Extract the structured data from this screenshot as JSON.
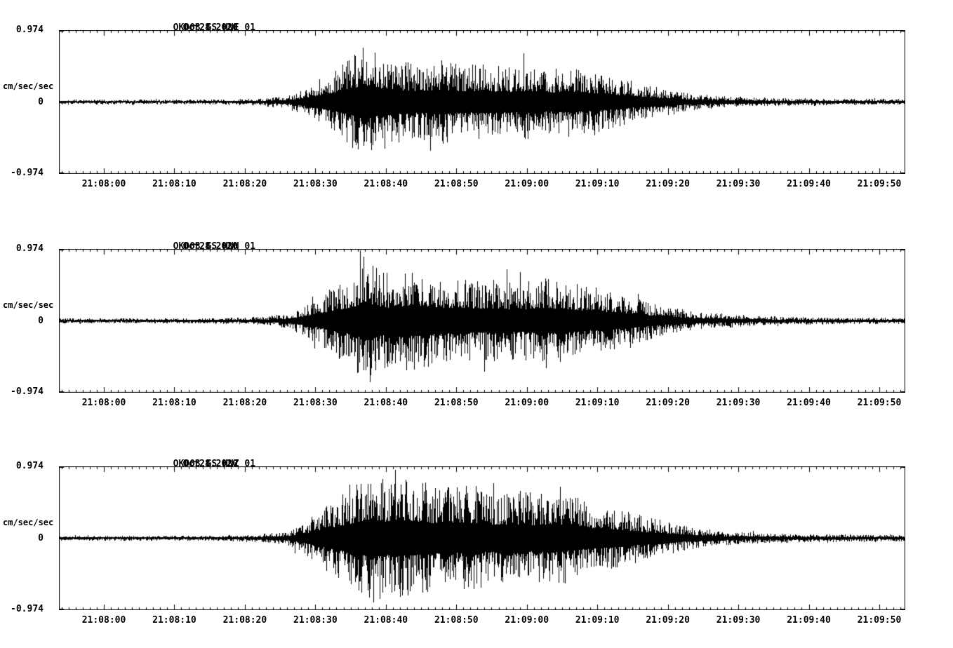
{
  "page": {
    "background": "#ffffff",
    "text_color": "#000000"
  },
  "chart_data": {
    "type": "line",
    "subtype": "seismogram-3-component-strong-motion",
    "ylabel": "cm/sec/sec",
    "ylim": [
      -0.974,
      0.974
    ],
    "yticks": [
      0.974,
      0,
      -0.974
    ],
    "ytick_labels": [
      "0.974",
      "0",
      "-0.974"
    ],
    "xtick_labels": [
      "21:08:00",
      "21:08:10",
      "21:08:20",
      "21:08:30",
      "21:08:40",
      "21:08:50",
      "21:09:00",
      "21:09:10",
      "21:09:20",
      "21:09:30",
      "21:09:40",
      "21:09:50"
    ],
    "x_major_tick_interval_s": 10,
    "x_minor_tick_interval_s": 1,
    "time_window": {
      "start": "21:07:54",
      "end": "21:09:54"
    },
    "trace_color": "#000000",
    "grid": false,
    "legend": false,
    "envelope_units": "fraction of full scale (0.974 cm/sec/sec) vs seconds after 21:08:00",
    "panels": [
      {
        "station_channel": "OK003_GS_HNE_01",
        "date": "Oct28,2020",
        "seed": 1337,
        "envelope": [
          [
            -7,
            0.035
          ],
          [
            15,
            0.035
          ],
          [
            22,
            0.05
          ],
          [
            26,
            0.09
          ],
          [
            29,
            0.22
          ],
          [
            32,
            0.42
          ],
          [
            34,
            0.55
          ],
          [
            36,
            0.72
          ],
          [
            37,
            0.85
          ],
          [
            39,
            0.68
          ],
          [
            42,
            0.6
          ],
          [
            45,
            0.55
          ],
          [
            48,
            0.62
          ],
          [
            51,
            0.52
          ],
          [
            54,
            0.56
          ],
          [
            57,
            0.5
          ],
          [
            60,
            0.55
          ],
          [
            63,
            0.48
          ],
          [
            66,
            0.52
          ],
          [
            69,
            0.45
          ],
          [
            72,
            0.38
          ],
          [
            75,
            0.3
          ],
          [
            78,
            0.22
          ],
          [
            81,
            0.16
          ],
          [
            84,
            0.11
          ],
          [
            88,
            0.085
          ],
          [
            92,
            0.065
          ],
          [
            96,
            0.055
          ],
          [
            102,
            0.05
          ],
          [
            108,
            0.045
          ],
          [
            114,
            0.04
          ]
        ]
      },
      {
        "station_channel": "OK003_GS_HNN_01",
        "date": "Oct28,2020",
        "seed": 7331,
        "envelope": [
          [
            -7,
            0.035
          ],
          [
            15,
            0.038
          ],
          [
            22,
            0.055
          ],
          [
            26,
            0.1
          ],
          [
            29,
            0.25
          ],
          [
            32,
            0.45
          ],
          [
            34,
            0.6
          ],
          [
            36,
            0.75
          ],
          [
            37,
            0.97
          ],
          [
            39,
            0.72
          ],
          [
            41,
            0.65
          ],
          [
            44,
            0.78
          ],
          [
            47,
            0.68
          ],
          [
            50,
            0.62
          ],
          [
            53,
            0.58
          ],
          [
            56,
            0.62
          ],
          [
            59,
            0.55
          ],
          [
            62,
            0.6
          ],
          [
            65,
            0.62
          ],
          [
            68,
            0.52
          ],
          [
            71,
            0.45
          ],
          [
            74,
            0.36
          ],
          [
            77,
            0.28
          ],
          [
            80,
            0.2
          ],
          [
            84,
            0.13
          ],
          [
            88,
            0.1
          ],
          [
            92,
            0.075
          ],
          [
            96,
            0.06
          ],
          [
            102,
            0.05
          ],
          [
            108,
            0.045
          ],
          [
            114,
            0.04
          ]
        ]
      },
      {
        "station_channel": "OK003_GS_HNZ_01",
        "date": "Oct28,2020",
        "seed": 9001,
        "envelope": [
          [
            -7,
            0.035
          ],
          [
            15,
            0.038
          ],
          [
            22,
            0.055
          ],
          [
            26,
            0.1
          ],
          [
            29,
            0.28
          ],
          [
            32,
            0.5
          ],
          [
            34,
            0.65
          ],
          [
            36,
            0.8
          ],
          [
            38,
            0.97
          ],
          [
            40,
            0.82
          ],
          [
            43,
            0.88
          ],
          [
            46,
            0.78
          ],
          [
            49,
            0.72
          ],
          [
            52,
            0.78
          ],
          [
            55,
            0.68
          ],
          [
            58,
            0.72
          ],
          [
            61,
            0.66
          ],
          [
            64,
            0.7
          ],
          [
            67,
            0.58
          ],
          [
            70,
            0.5
          ],
          [
            73,
            0.42
          ],
          [
            76,
            0.33
          ],
          [
            79,
            0.26
          ],
          [
            82,
            0.18
          ],
          [
            85,
            0.13
          ],
          [
            88,
            0.1
          ],
          [
            92,
            0.08
          ],
          [
            96,
            0.065
          ],
          [
            102,
            0.055
          ],
          [
            108,
            0.05
          ],
          [
            114,
            0.045
          ]
        ]
      }
    ]
  }
}
